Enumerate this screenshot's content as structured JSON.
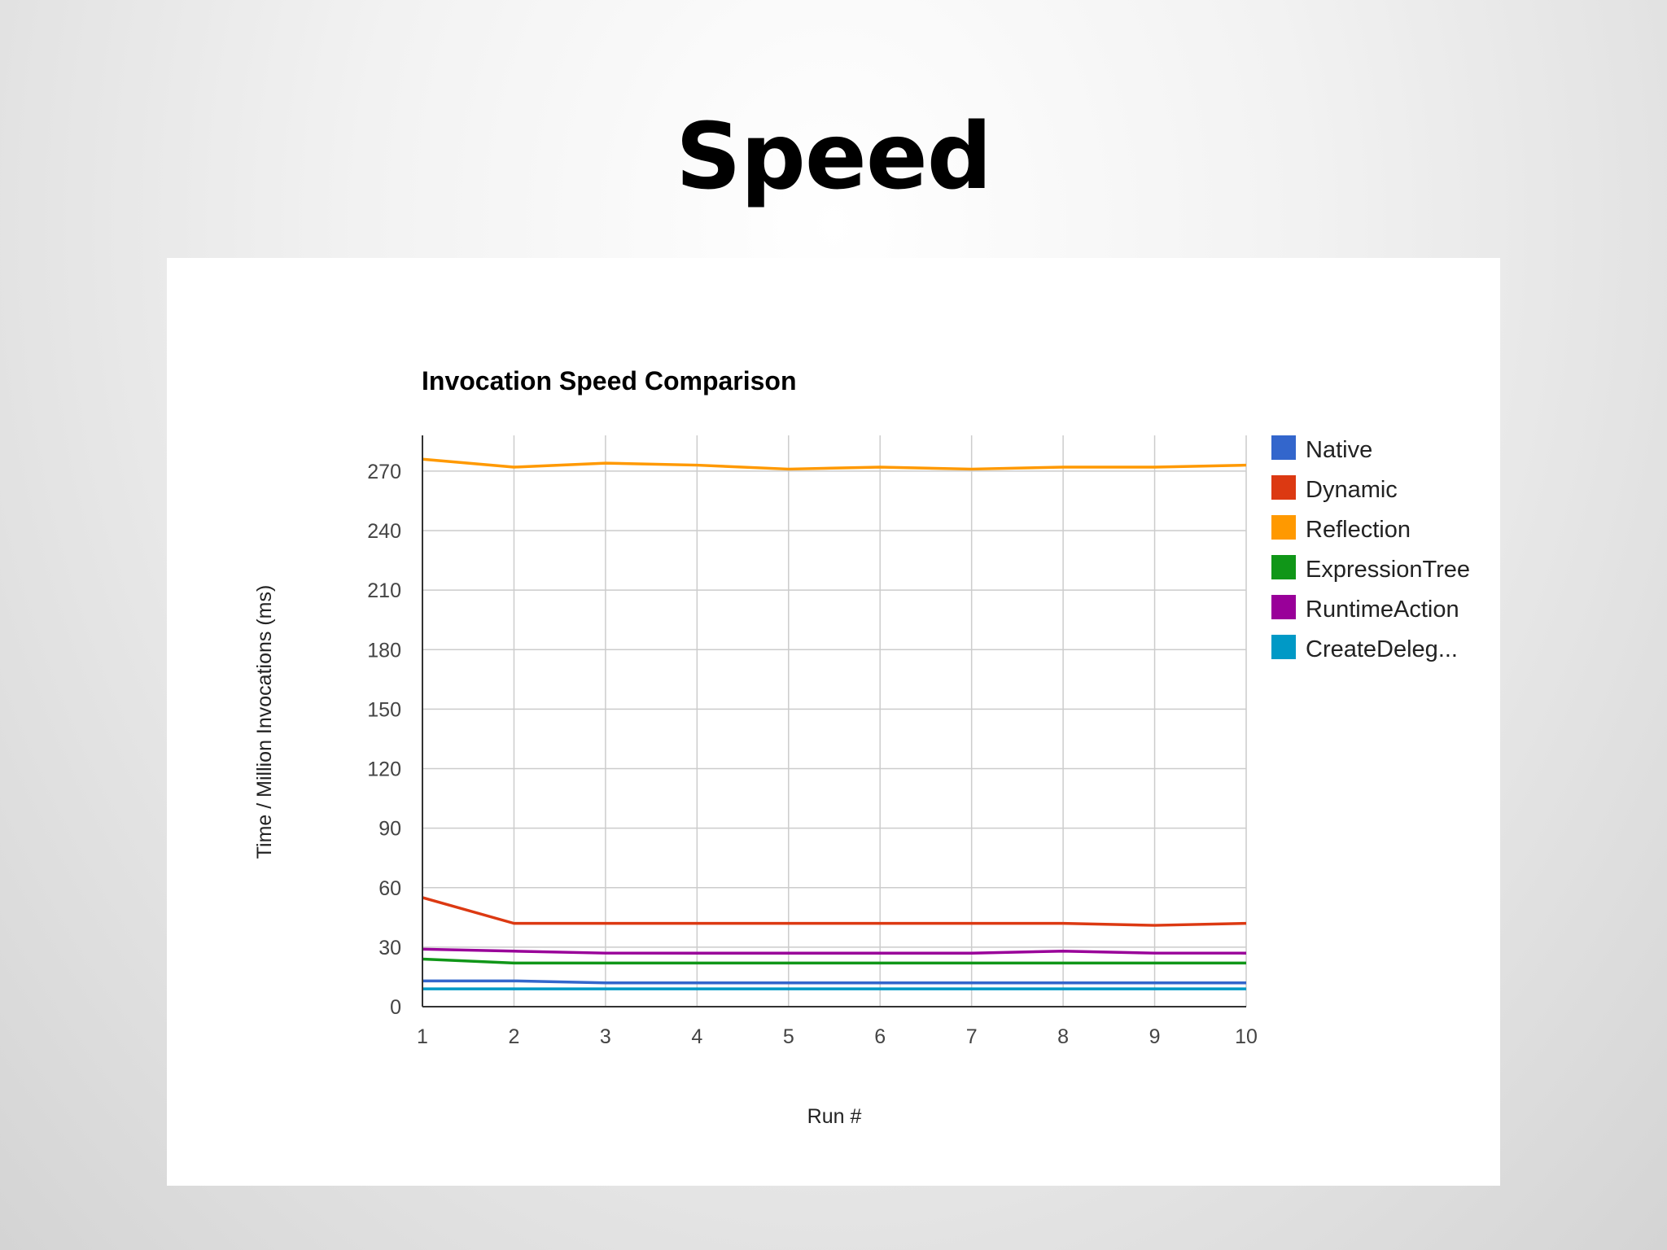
{
  "slide": {
    "title": "Speed"
  },
  "chart_data": {
    "type": "line",
    "title": "Invocation Speed Comparison",
    "xlabel": "Run #",
    "ylabel": "Time / Million Invocations (ms)",
    "x": [
      1,
      2,
      3,
      4,
      5,
      6,
      7,
      8,
      9,
      10
    ],
    "xlim": [
      1,
      10
    ],
    "ylim": [
      0,
      288
    ],
    "yticks": [
      0,
      30,
      60,
      90,
      120,
      150,
      180,
      210,
      240,
      270
    ],
    "grid": true,
    "legend_position": "right",
    "series": [
      {
        "name": "Native",
        "color": "#3366cc",
        "values": [
          13,
          13,
          12,
          12,
          12,
          12,
          12,
          12,
          12,
          12
        ]
      },
      {
        "name": "Dynamic",
        "color": "#dc3912",
        "values": [
          55,
          42,
          42,
          42,
          42,
          42,
          42,
          42,
          41,
          42
        ]
      },
      {
        "name": "Reflection",
        "color": "#ff9900",
        "values": [
          276,
          272,
          274,
          273,
          271,
          272,
          271,
          272,
          272,
          273
        ]
      },
      {
        "name": "ExpressionTree",
        "color": "#109618",
        "values": [
          24,
          22,
          22,
          22,
          22,
          22,
          22,
          22,
          22,
          22
        ]
      },
      {
        "name": "RuntimeAction",
        "color": "#990099",
        "values": [
          29,
          28,
          27,
          27,
          27,
          27,
          27,
          28,
          27,
          27
        ]
      },
      {
        "name": "CreateDeleg...",
        "color": "#0099c6",
        "values": [
          9,
          9,
          9,
          9,
          9,
          9,
          9,
          9,
          9,
          9
        ]
      }
    ]
  }
}
